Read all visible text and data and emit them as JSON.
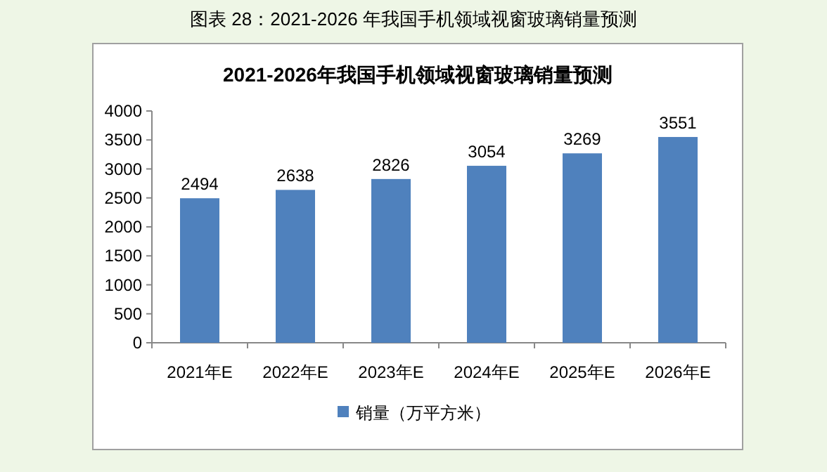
{
  "chart_data": {
    "type": "bar",
    "title": "2021-2026年我国手机领域视窗玻璃销量预测",
    "annotations": [
      "图表  28：2021-2026 年我国手机领域视窗玻璃销量预测"
    ],
    "categories": [
      "2021年E",
      "2022年E",
      "2023年E",
      "2024年E",
      "2025年E",
      "2026年E"
    ],
    "series": [
      {
        "name": "销量（万平方米）",
        "color": "#4f81bd",
        "values": [
          2494,
          2638,
          2826,
          3054,
          3269,
          3551
        ]
      }
    ],
    "ylim": [
      0,
      4000
    ],
    "yticks": [
      0,
      500,
      1000,
      1500,
      2000,
      2500,
      3000,
      3500,
      4000
    ],
    "data_labels": true,
    "grid": false,
    "legend": "bottom"
  }
}
